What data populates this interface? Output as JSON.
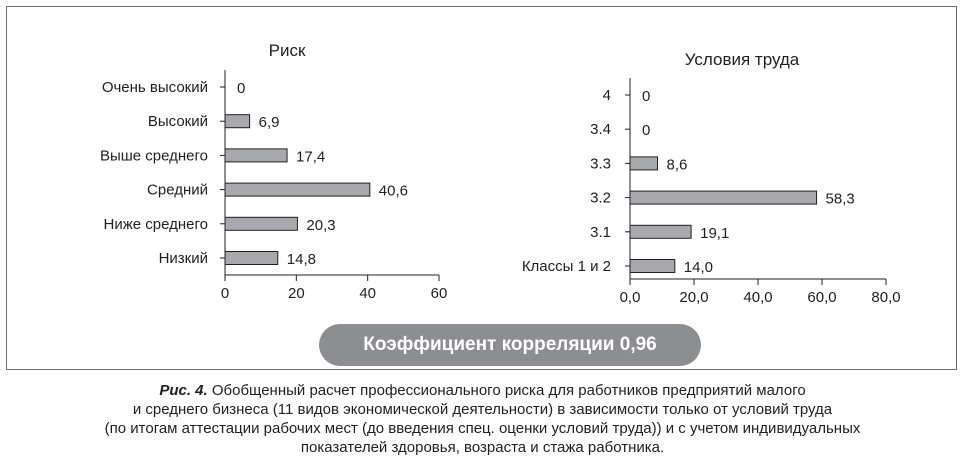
{
  "chart_data": [
    {
      "type": "bar",
      "orientation": "horizontal",
      "title": "Риск",
      "categories": [
        "Очень высокий",
        "Высокий",
        "Выше среднего",
        "Средний",
        "Ниже среднего",
        "Низкий"
      ],
      "values": [
        0,
        6.9,
        17.4,
        40.6,
        20.3,
        14.8
      ],
      "value_labels": [
        "0",
        "6,9",
        "17,4",
        "40,6",
        "20,3",
        "14,8"
      ],
      "xlim": [
        0,
        60
      ],
      "xticks": [
        "0",
        "20",
        "40",
        "60"
      ],
      "xlabel": "",
      "ylabel": "",
      "grid": false
    },
    {
      "type": "bar",
      "orientation": "horizontal",
      "title": "Условия труда",
      "categories": [
        "4",
        "3.4",
        "3.3",
        "3.2",
        "3.1",
        "Классы 1 и 2"
      ],
      "values": [
        0,
        0,
        8.6,
        58.3,
        19.1,
        14.0
      ],
      "value_labels": [
        "0",
        "0",
        "8,6",
        "58,3",
        "19,1",
        "14,0"
      ],
      "xlim": [
        0,
        80
      ],
      "xticks": [
        "0,0",
        "20,0",
        "40,0",
        "60,0",
        "80,0"
      ],
      "xlabel": "",
      "ylabel": "",
      "grid": false
    }
  ],
  "badge": {
    "text": "Коэффициент корреляции 0,96"
  },
  "caption": {
    "lead": "Рис. 4.",
    "lines": [
      " Обобщенный расчет профессионального риска для работников предприятий малого",
      "и среднего бизнеса (11 видов экономической деятельности) в зависимости только от условий труда",
      "(по итогам аттестации рабочих мест (до введения спец. оценки условий труда)) и с учетом индивидуальных",
      "показателей здоровья, возраста и стажа работника."
    ]
  },
  "colors": {
    "bar_fill": "#a7a9ac",
    "bar_stroke": "#231f20",
    "badge_fill": "#8c8e91",
    "frame": "#6d6e71"
  }
}
